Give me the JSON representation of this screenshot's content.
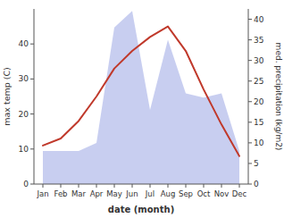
{
  "chart_data": {
    "type": "line",
    "categories": [
      "Jan",
      "Feb",
      "Mar",
      "Apr",
      "May",
      "Jun",
      "Jul",
      "Aug",
      "Sep",
      "Oct",
      "Nov",
      "Dec"
    ],
    "series": [
      {
        "type": "line",
        "color": "#c0392b",
        "values": [
          11,
          13,
          18,
          25,
          33,
          38,
          42,
          45,
          38,
          27,
          17,
          8
        ]
      },
      {
        "type": "area",
        "axis": "y2",
        "color": "#aab4e8",
        "values": [
          8,
          8,
          8,
          10,
          38,
          42,
          18,
          35,
          22,
          21,
          22,
          8
        ]
      }
    ],
    "xlabel": "date (month)",
    "ylabel": "max temp (C)",
    "y2label": "med. precipitation (kg/m2)",
    "ylim": [
      0,
      50
    ],
    "yticks": [
      0,
      10,
      20,
      30,
      40
    ],
    "y2lim": [
      0,
      42.5
    ],
    "y2ticks": [
      0,
      5,
      10,
      15,
      20,
      25,
      30,
      35,
      40
    ],
    "grid": false
  }
}
